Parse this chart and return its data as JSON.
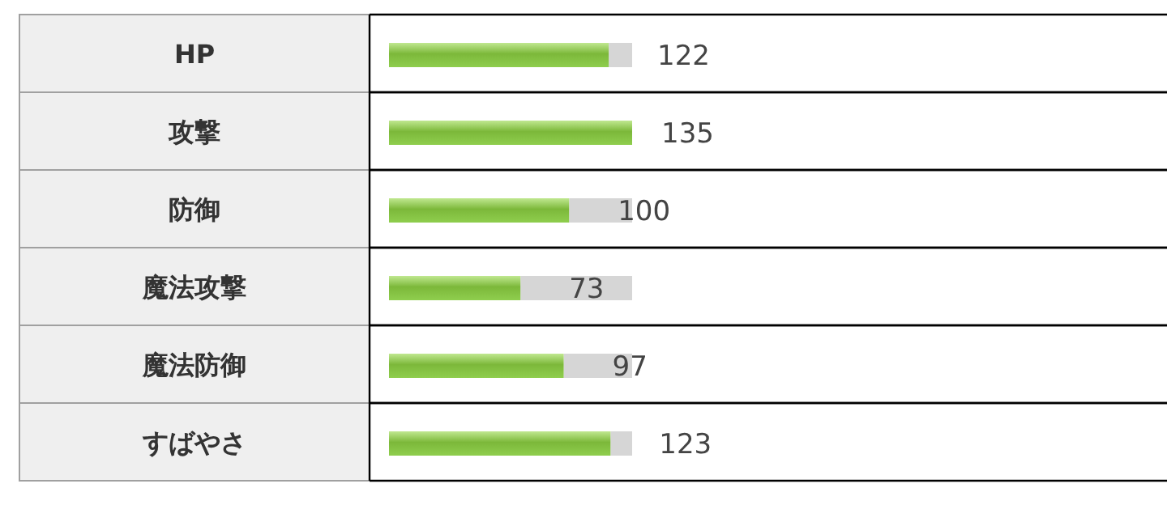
{
  "chart_data": {
    "type": "bar",
    "orientation": "horizontal",
    "data_labels": true,
    "categories": [
      "HP",
      "攻撃",
      "防御",
      "魔法攻撃",
      "魔法防御",
      "すばやさ"
    ],
    "values": [
      122,
      135,
      100,
      73,
      97,
      123
    ],
    "color": "#7cb83a"
  }
}
